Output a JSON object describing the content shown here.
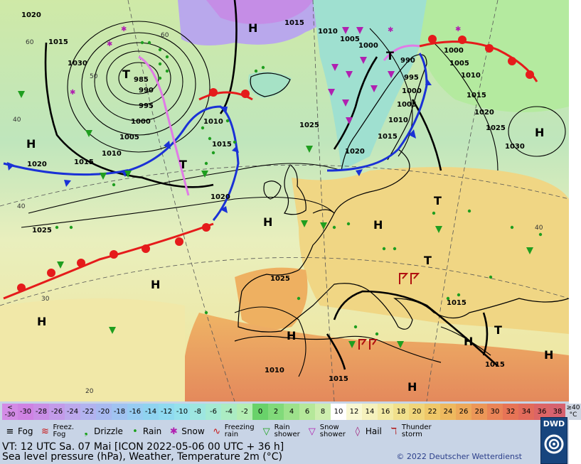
{
  "colors": {
    "sea_cool": "#bde4c0",
    "sea_warm": "#efe6a6",
    "land_warm": "#f0c06c",
    "land_hot": "#e9925e",
    "cold_front": "#1a31d6",
    "warm_front": "#e51b1b",
    "occlusion": "#e07be6",
    "isobar": "#000000",
    "legend_bg": "#c8d4e6"
  },
  "map": {
    "pressure_centers": [
      {
        "label": "H",
        "name": "high-center"
      },
      {
        "label": "T",
        "name": "low-center"
      },
      {
        "label": "H",
        "name": "high-center"
      },
      {
        "label": "T",
        "name": "low-center"
      },
      {
        "label": "H",
        "name": "high-center"
      },
      {
        "label": "H",
        "name": "high-center"
      },
      {
        "label": "H",
        "name": "high-center"
      },
      {
        "label": "T",
        "name": "low-center"
      },
      {
        "label": "H",
        "name": "high-center"
      },
      {
        "label": "T",
        "name": "low-center"
      },
      {
        "label": "H",
        "name": "high-center"
      },
      {
        "label": "H",
        "name": "high-center"
      },
      {
        "label": "T",
        "name": "low-center"
      },
      {
        "label": "H",
        "name": "high-center"
      },
      {
        "label": "H",
        "name": "high-center"
      },
      {
        "label": "T",
        "name": "low-center"
      },
      {
        "label": "H",
        "name": "high-center"
      }
    ],
    "isobar_labels": [
      "1020",
      "1015",
      "1030",
      "985",
      "990",
      "995",
      "1000",
      "1005",
      "1010",
      "1015",
      "1020",
      "1010",
      "1015",
      "1010",
      "1005",
      "1000",
      "995",
      "990",
      "1000",
      "1010",
      "1005",
      "1015",
      "1020",
      "1025",
      "1030",
      "1025",
      "1010",
      "1005",
      "1000",
      "1015",
      "1020",
      "1025",
      "1025",
      "1015",
      "1020",
      "1015",
      "1015",
      "1015",
      "1010"
    ],
    "temperature_labels": [
      "40",
      "60",
      "50",
      "60",
      "40",
      "30",
      "20",
      "40"
    ]
  },
  "legend": {
    "scale": [
      {
        "v": "<\n-30",
        "c": "#d38be6"
      },
      {
        "v": "-30",
        "c": "#cf82e3"
      },
      {
        "v": "-28",
        "c": "#c98ee6"
      },
      {
        "v": "-26",
        "c": "#c39be9"
      },
      {
        "v": "-24",
        "c": "#bca8ec"
      },
      {
        "v": "-22",
        "c": "#b2b3ef"
      },
      {
        "v": "-20",
        "c": "#a8b9f0"
      },
      {
        "v": "-18",
        "c": "#a0c3f1"
      },
      {
        "v": "-16",
        "c": "#97ccf2"
      },
      {
        "v": "-14",
        "c": "#8fd3f0"
      },
      {
        "v": "-12",
        "c": "#8fdaf0"
      },
      {
        "v": "-10",
        "c": "#95e1ec"
      },
      {
        "v": "-8",
        "c": "#9de6e0"
      },
      {
        "v": "-6",
        "c": "#a4ead3"
      },
      {
        "v": "-4",
        "c": "#abecc3"
      },
      {
        "v": "-2",
        "c": "#b4eeb3"
      },
      {
        "v": "0",
        "c": "#69d26a"
      },
      {
        "v": "2",
        "c": "#81da7a"
      },
      {
        "v": "4",
        "c": "#9de28b"
      },
      {
        "v": "6",
        "c": "#b5e89a"
      },
      {
        "v": "8",
        "c": "#cdeeae"
      },
      {
        "v": "10",
        "c": "#ffffff"
      },
      {
        "v": "12",
        "c": "#f8f7d2"
      },
      {
        "v": "14",
        "c": "#f5f1bc"
      },
      {
        "v": "16",
        "c": "#f3eaa4"
      },
      {
        "v": "18",
        "c": "#f1e08c"
      },
      {
        "v": "20",
        "c": "#f0d57a"
      },
      {
        "v": "22",
        "c": "#efc869"
      },
      {
        "v": "24",
        "c": "#eeb95f"
      },
      {
        "v": "26",
        "c": "#eda95a"
      },
      {
        "v": "28",
        "c": "#ec9758"
      },
      {
        "v": "30",
        "c": "#ea8457"
      },
      {
        "v": "32",
        "c": "#e77456"
      },
      {
        "v": "34",
        "c": "#e26b5b"
      },
      {
        "v": "36",
        "c": "#dc6566"
      },
      {
        "v": "38",
        "c": "#d6626f"
      },
      {
        "v": "≥40\n°C",
        "c": "#cfd6e2"
      }
    ],
    "weather": [
      {
        "sym": "≡",
        "label": "Fog",
        "icon": "fog-icon",
        "color": "#000000"
      },
      {
        "sym": "≋",
        "label": "Freez.\nFog",
        "icon": "freezing-fog-icon",
        "color": "#c81818"
      },
      {
        "sym": "❟",
        "label": "Drizzle",
        "icon": "drizzle-icon",
        "color": "#18a018"
      },
      {
        "sym": "•",
        "label": "Rain",
        "icon": "rain-icon",
        "color": "#18a018"
      },
      {
        "sym": "✱",
        "label": "Snow",
        "icon": "snow-icon",
        "color": "#b020b0"
      },
      {
        "sym": "∿",
        "label": "Freezing\nrain",
        "icon": "freezing-rain-icon",
        "color": "#c81818"
      },
      {
        "sym": "▽",
        "label": "Rain\nshower",
        "icon": "rain-shower-icon",
        "color": "#18a018"
      },
      {
        "sym": "▽",
        "label": "Snow\nshower",
        "icon": "snow-shower-icon",
        "color": "#b020b0"
      },
      {
        "sym": "◊",
        "label": "Hail",
        "icon": "hail-icon",
        "color": "#a0207a"
      },
      {
        "sym": "ℸ",
        "label": "Thunder\nstorm",
        "icon": "thunderstorm-icon",
        "color": "#b01010"
      }
    ],
    "valid_time": "VT: 12 UTC Sa.  07 Mai [ICON 2022-05-06  00 UTC + 36 h]",
    "description": "Sea level pressure (hPa), Weather, Temperature 2m (°C)",
    "copyright": "© 2022 Deutscher Wetterdienst",
    "logo_text": "DWD"
  }
}
